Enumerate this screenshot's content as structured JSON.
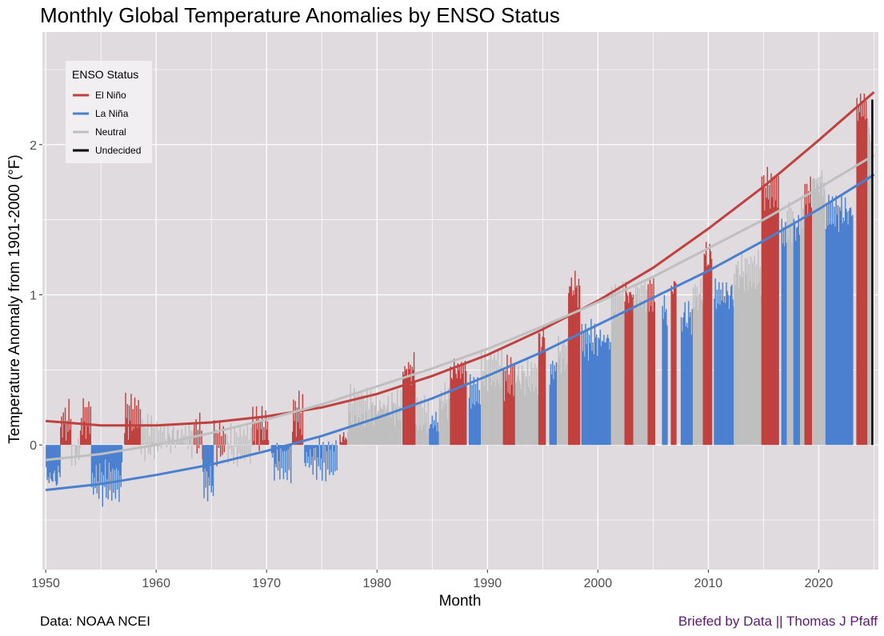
{
  "title": "Monthly Global Temperature Anomalies by ENSO Status",
  "caption_left": "Data: NOAA NCEI",
  "caption_right": "Briefed by Data || Thomas J Pfaff",
  "chart_data": {
    "type": "bar",
    "title": "Monthly Global Temperature Anomalies by ENSO Status",
    "xlabel": "Month",
    "ylabel": "Temperature Anomaly from 1901-2000  (°F)",
    "xlim": [
      1949.7,
      2025.4
    ],
    "ylim": [
      -0.83,
      2.75
    ],
    "x_ticks": [
      1950,
      1960,
      1970,
      1980,
      1990,
      2000,
      2010,
      2020
    ],
    "x_tick_labels": [
      "1950",
      "1960",
      "1970",
      "1980",
      "1990",
      "2000",
      "2010",
      "2020"
    ],
    "y_ticks": [
      0,
      1,
      2
    ],
    "y_tick_labels": [
      "0",
      "1",
      "2"
    ],
    "grid": true,
    "legend": {
      "title": "ENSO Status",
      "position": "top-left",
      "entries": [
        {
          "label": "El Niño",
          "color": "#c0413f"
        },
        {
          "label": "La Niña",
          "color": "#4a80cf"
        },
        {
          "label": "Neutral",
          "color": "#bfbfbf"
        },
        {
          "label": "Undecided",
          "color": "#000000"
        }
      ]
    },
    "episodes": [
      {
        "status": "La Niña",
        "start": 1950.0,
        "end": 1951.3,
        "level": -0.22
      },
      {
        "status": "El Niño",
        "start": 1951.3,
        "end": 1952.3,
        "level": 0.15
      },
      {
        "status": "Neutral",
        "start": 1952.3,
        "end": 1953.1,
        "level": -0.05
      },
      {
        "status": "El Niño",
        "start": 1953.1,
        "end": 1954.1,
        "level": 0.18
      },
      {
        "status": "La Niña",
        "start": 1954.1,
        "end": 1956.9,
        "level": -0.25
      },
      {
        "status": "El Niño",
        "start": 1957.1,
        "end": 1958.6,
        "level": 0.2
      },
      {
        "status": "Neutral",
        "start": 1958.6,
        "end": 1963.4,
        "level": 0.05
      },
      {
        "status": "El Niño",
        "start": 1963.4,
        "end": 1964.2,
        "level": 0.06
      },
      {
        "status": "La Niña",
        "start": 1964.2,
        "end": 1965.2,
        "level": -0.25
      },
      {
        "status": "El Niño",
        "start": 1965.2,
        "end": 1966.3,
        "level": 0.02
      },
      {
        "status": "Neutral",
        "start": 1966.3,
        "end": 1968.7,
        "level": 0.0
      },
      {
        "status": "El Niño",
        "start": 1968.7,
        "end": 1970.2,
        "level": 0.12
      },
      {
        "status": "La Niña",
        "start": 1970.4,
        "end": 1972.2,
        "level": -0.12
      },
      {
        "status": "El Niño",
        "start": 1972.3,
        "end": 1973.3,
        "level": 0.2
      },
      {
        "status": "La Niña",
        "start": 1973.4,
        "end": 1976.4,
        "level": -0.1
      },
      {
        "status": "El Niño",
        "start": 1976.6,
        "end": 1977.3,
        "level": 0.05
      },
      {
        "status": "Neutral",
        "start": 1977.3,
        "end": 1982.2,
        "level": 0.25
      },
      {
        "status": "El Niño",
        "start": 1982.3,
        "end": 1983.5,
        "level": 0.5
      },
      {
        "status": "Neutral",
        "start": 1983.5,
        "end": 1984.7,
        "level": 0.2
      },
      {
        "status": "La Niña",
        "start": 1984.7,
        "end": 1985.6,
        "level": 0.15
      },
      {
        "status": "Neutral",
        "start": 1985.6,
        "end": 1986.6,
        "level": 0.3
      },
      {
        "status": "El Niño",
        "start": 1986.6,
        "end": 1988.1,
        "level": 0.5
      },
      {
        "status": "La Niña",
        "start": 1988.3,
        "end": 1989.4,
        "level": 0.35
      },
      {
        "status": "Neutral",
        "start": 1989.4,
        "end": 1991.4,
        "level": 0.5
      },
      {
        "status": "El Niño",
        "start": 1991.4,
        "end": 1992.5,
        "level": 0.45
      },
      {
        "status": "Neutral",
        "start": 1992.5,
        "end": 1994.6,
        "level": 0.45
      },
      {
        "status": "El Niño",
        "start": 1994.6,
        "end": 1995.3,
        "level": 0.7
      },
      {
        "status": "La Niña",
        "start": 1995.6,
        "end": 1996.3,
        "level": 0.5
      },
      {
        "status": "Neutral",
        "start": 1996.3,
        "end": 1997.3,
        "level": 0.6
      },
      {
        "status": "El Niño",
        "start": 1997.3,
        "end": 1998.4,
        "level": 1.05
      },
      {
        "status": "La Niña",
        "start": 1998.5,
        "end": 2001.2,
        "level": 0.7
      },
      {
        "status": "Neutral",
        "start": 2001.2,
        "end": 2002.4,
        "level": 0.95
      },
      {
        "status": "El Niño",
        "start": 2002.4,
        "end": 2003.2,
        "level": 1.0
      },
      {
        "status": "Neutral",
        "start": 2003.2,
        "end": 2004.5,
        "level": 1.0
      },
      {
        "status": "El Niño",
        "start": 2004.5,
        "end": 2005.2,
        "level": 1.0
      },
      {
        "status": "La Niña",
        "start": 2005.8,
        "end": 2006.3,
        "level": 0.9
      },
      {
        "status": "El Niño",
        "start": 2006.6,
        "end": 2007.1,
        "level": 1.05
      },
      {
        "status": "La Niña",
        "start": 2007.5,
        "end": 2008.6,
        "level": 0.85
      },
      {
        "status": "Neutral",
        "start": 2008.6,
        "end": 2009.5,
        "level": 1.0
      },
      {
        "status": "El Niño",
        "start": 2009.5,
        "end": 2010.3,
        "level": 1.25
      },
      {
        "status": "La Niña",
        "start": 2010.5,
        "end": 2012.3,
        "level": 1.0
      },
      {
        "status": "Neutral",
        "start": 2012.3,
        "end": 2014.8,
        "level": 1.15
      },
      {
        "status": "El Niño",
        "start": 2014.8,
        "end": 2016.4,
        "level": 1.7
      },
      {
        "status": "La Niña",
        "start": 2016.6,
        "end": 2017.1,
        "level": 1.4
      },
      {
        "status": "Neutral",
        "start": 2017.1,
        "end": 2017.7,
        "level": 1.5
      },
      {
        "status": "La Niña",
        "start": 2017.7,
        "end": 2018.3,
        "level": 1.45
      },
      {
        "status": "Neutral",
        "start": 2018.3,
        "end": 2018.7,
        "level": 1.55
      },
      {
        "status": "El Niño",
        "start": 2018.7,
        "end": 2019.4,
        "level": 1.65
      },
      {
        "status": "Neutral",
        "start": 2019.4,
        "end": 2020.6,
        "level": 1.75
      },
      {
        "status": "La Niña",
        "start": 2020.6,
        "end": 2023.1,
        "level": 1.55
      },
      {
        "status": "El Niño",
        "start": 2023.4,
        "end": 2024.4,
        "level": 2.25
      },
      {
        "status": "Neutral",
        "start": 2024.4,
        "end": 2024.75,
        "level": 2.1
      },
      {
        "status": "Undecided",
        "start": 2024.75,
        "end": 2024.95,
        "level": 2.3
      }
    ],
    "trend_lines": [
      {
        "name": "El Niño",
        "color": "#c0413f",
        "x": [
          1950,
          1955,
          1960,
          1965,
          1970,
          1975,
          1980,
          1985,
          1990,
          1995,
          2000,
          2005,
          2010,
          2015,
          2020,
          2025
        ],
        "y": [
          0.16,
          0.13,
          0.13,
          0.15,
          0.19,
          0.25,
          0.34,
          0.46,
          0.6,
          0.77,
          0.96,
          1.18,
          1.44,
          1.72,
          2.03,
          2.35
        ]
      },
      {
        "name": "La Niña",
        "color": "#4a80cf",
        "x": [
          1950,
          1955,
          1960,
          1965,
          1970,
          1975,
          1980,
          1985,
          1990,
          1995,
          2000,
          2005,
          2010,
          2015,
          2020,
          2025
        ],
        "y": [
          -0.3,
          -0.26,
          -0.2,
          -0.13,
          -0.04,
          0.06,
          0.18,
          0.31,
          0.46,
          0.62,
          0.8,
          0.98,
          1.16,
          1.36,
          1.57,
          1.8
        ]
      },
      {
        "name": "Neutral",
        "color": "#bfbfbf",
        "x": [
          1950,
          1955,
          1960,
          1965,
          1970,
          1975,
          1980,
          1985,
          1990,
          1995,
          2000,
          2005,
          2010,
          2015,
          2020,
          2025
        ],
        "y": [
          -0.1,
          -0.06,
          0.0,
          0.08,
          0.17,
          0.27,
          0.39,
          0.51,
          0.64,
          0.79,
          0.95,
          1.12,
          1.31,
          1.5,
          1.71,
          1.93
        ]
      }
    ]
  }
}
